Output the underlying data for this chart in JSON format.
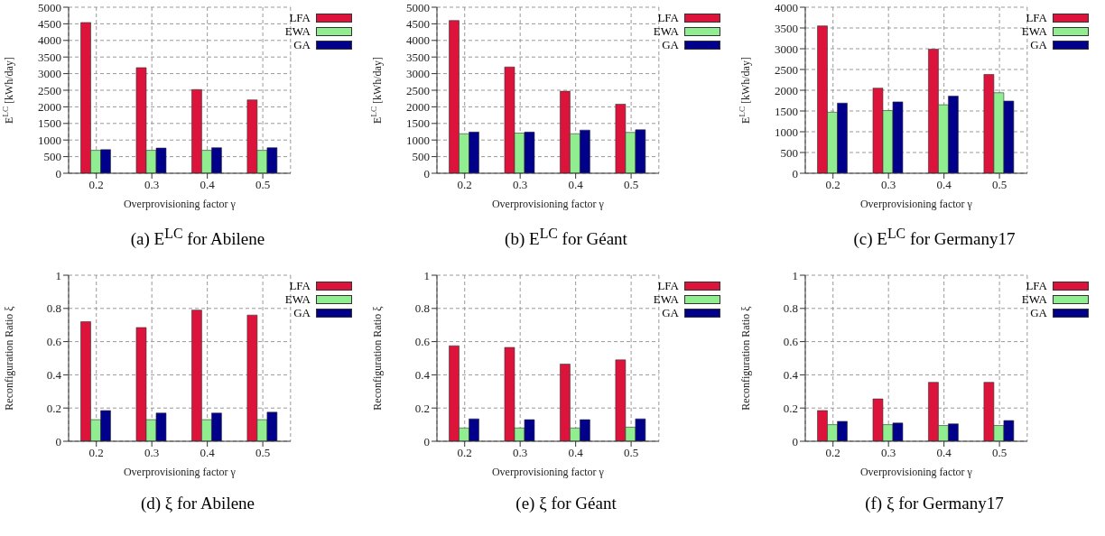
{
  "chart_data": [
    {
      "type": "bar",
      "title": "(a) E$^{LC}$ for Abilene",
      "xlabel": "Overprovisioning factor γ",
      "ylabel": "E$^{LC}$ [kWh/day]",
      "categories": [
        "0.2",
        "0.3",
        "0.4",
        "0.5"
      ],
      "ylim": [
        0,
        5000
      ],
      "yticks": [
        0,
        500,
        1000,
        1500,
        2000,
        2500,
        3000,
        3500,
        4000,
        4500,
        5000
      ],
      "grid": true,
      "legend": "top right",
      "series": [
        {
          "name": "LFA",
          "color": "#dc143c",
          "values": [
            4540,
            3180,
            2520,
            2210
          ]
        },
        {
          "name": "EWA",
          "color": "#90ee90",
          "values": [
            690,
            690,
            690,
            690
          ]
        },
        {
          "name": "GA",
          "color": "#00008b",
          "values": [
            710,
            760,
            770,
            770
          ]
        }
      ]
    },
    {
      "type": "bar",
      "title": "(b) E$^{LC}$ for Géant",
      "xlabel": "Overprovisioning factor γ",
      "ylabel": "E$^{LC}$ [kWh/day]",
      "categories": [
        "0.2",
        "0.3",
        "0.4",
        "0.5"
      ],
      "ylim": [
        0,
        5000
      ],
      "yticks": [
        0,
        500,
        1000,
        1500,
        2000,
        2500,
        3000,
        3500,
        4000,
        4500,
        5000
      ],
      "grid": true,
      "legend": "top right",
      "series": [
        {
          "name": "LFA",
          "color": "#dc143c",
          "values": [
            4600,
            3200,
            2470,
            2080
          ]
        },
        {
          "name": "EWA",
          "color": "#90ee90",
          "values": [
            1190,
            1210,
            1190,
            1230
          ]
        },
        {
          "name": "GA",
          "color": "#00008b",
          "values": [
            1240,
            1240,
            1300,
            1310
          ]
        }
      ]
    },
    {
      "type": "bar",
      "title": "(c) E$^{LC}$ for Germany17",
      "xlabel": "Overprovisioning factor γ",
      "ylabel": "E$^{LC}$ [kWh/day]",
      "categories": [
        "0.2",
        "0.3",
        "0.4",
        "0.5"
      ],
      "ylim": [
        0,
        4000
      ],
      "yticks": [
        0,
        500,
        1000,
        1500,
        2000,
        2500,
        3000,
        3500,
        4000
      ],
      "grid": true,
      "legend": "top right",
      "series": [
        {
          "name": "LFA",
          "color": "#dc143c",
          "values": [
            3550,
            2050,
            2990,
            2380
          ]
        },
        {
          "name": "EWA",
          "color": "#90ee90",
          "values": [
            1470,
            1510,
            1650,
            1940
          ]
        },
        {
          "name": "GA",
          "color": "#00008b",
          "values": [
            1690,
            1720,
            1860,
            1740
          ]
        }
      ]
    },
    {
      "type": "bar",
      "title": "(d) ξ for Abilene",
      "xlabel": "Overprovisioning factor γ",
      "ylabel": "Reconfiguration Ratio ξ",
      "categories": [
        "0.2",
        "0.3",
        "0.4",
        "0.5"
      ],
      "ylim": [
        0,
        1
      ],
      "yticks": [
        0,
        0.2,
        0.4,
        0.6,
        0.8,
        1
      ],
      "grid": true,
      "legend": "top right",
      "series": [
        {
          "name": "LFA",
          "color": "#dc143c",
          "values": [
            0.72,
            0.685,
            0.79,
            0.76
          ]
        },
        {
          "name": "EWA",
          "color": "#90ee90",
          "values": [
            0.13,
            0.13,
            0.13,
            0.13
          ]
        },
        {
          "name": "GA",
          "color": "#00008b",
          "values": [
            0.185,
            0.17,
            0.17,
            0.175
          ]
        }
      ]
    },
    {
      "type": "bar",
      "title": "(e) ξ for Géant",
      "xlabel": "Overprovisioning factor γ",
      "ylabel": "Reconfiguration Ratio ξ",
      "categories": [
        "0.2",
        "0.3",
        "0.4",
        "0.5"
      ],
      "ylim": [
        0,
        1
      ],
      "yticks": [
        0,
        0.2,
        0.4,
        0.6,
        0.8,
        1
      ],
      "grid": true,
      "legend": "top right",
      "series": [
        {
          "name": "LFA",
          "color": "#dc143c",
          "values": [
            0.575,
            0.565,
            0.465,
            0.49
          ]
        },
        {
          "name": "EWA",
          "color": "#90ee90",
          "values": [
            0.08,
            0.08,
            0.08,
            0.085
          ]
        },
        {
          "name": "GA",
          "color": "#00008b",
          "values": [
            0.135,
            0.13,
            0.13,
            0.135
          ]
        }
      ]
    },
    {
      "type": "bar",
      "title": "(f) ξ for Germany17",
      "xlabel": "Overprovisioning factor γ",
      "ylabel": "Reconfiguration Ratio ξ",
      "categories": [
        "0.2",
        "0.3",
        "0.4",
        "0.5"
      ],
      "ylim": [
        0,
        1
      ],
      "yticks": [
        0,
        0.2,
        0.4,
        0.6,
        0.8,
        1
      ],
      "grid": true,
      "legend": "top right",
      "series": [
        {
          "name": "LFA",
          "color": "#dc143c",
          "values": [
            0.185,
            0.255,
            0.355,
            0.355
          ]
        },
        {
          "name": "EWA",
          "color": "#90ee90",
          "values": [
            0.1,
            0.1,
            0.095,
            0.095
          ]
        },
        {
          "name": "GA",
          "color": "#00008b",
          "values": [
            0.12,
            0.11,
            0.105,
            0.125
          ]
        }
      ]
    }
  ]
}
